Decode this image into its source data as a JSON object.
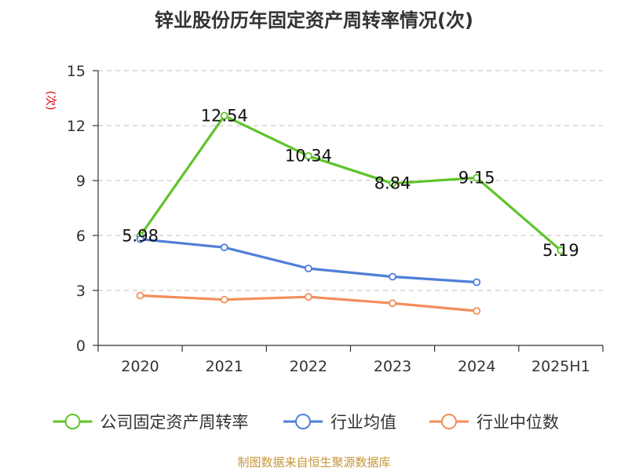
{
  "title": "锌业股份历年固定资产周转率情况(次)",
  "source": "制图数据来自恒生聚源数据库",
  "chart_data": {
    "type": "line",
    "ylabel": "(次)",
    "xlabel": "",
    "ylim": [
      0,
      15
    ],
    "yticks": [
      0,
      3,
      6,
      9,
      12,
      15
    ],
    "grid": true,
    "legend_position": "bottom",
    "categories": [
      "2020",
      "2021",
      "2022",
      "2023",
      "2024",
      "2025H1"
    ],
    "series": [
      {
        "name": "公司固定资产周转率",
        "color": "#5ec42a",
        "values": [
          5.98,
          12.54,
          10.34,
          8.84,
          9.15,
          5.19
        ],
        "labels": [
          "5.98",
          "12.54",
          "10.34",
          "8.84",
          "9.15",
          "5.19"
        ]
      },
      {
        "name": "行业均值",
        "color": "#4f7fd8",
        "values": [
          5.8,
          5.35,
          4.2,
          3.75,
          3.45,
          null
        ]
      },
      {
        "name": "行业中位数",
        "color": "#f28e5a",
        "values": [
          2.72,
          2.5,
          2.65,
          2.3,
          1.88,
          null
        ]
      }
    ]
  }
}
